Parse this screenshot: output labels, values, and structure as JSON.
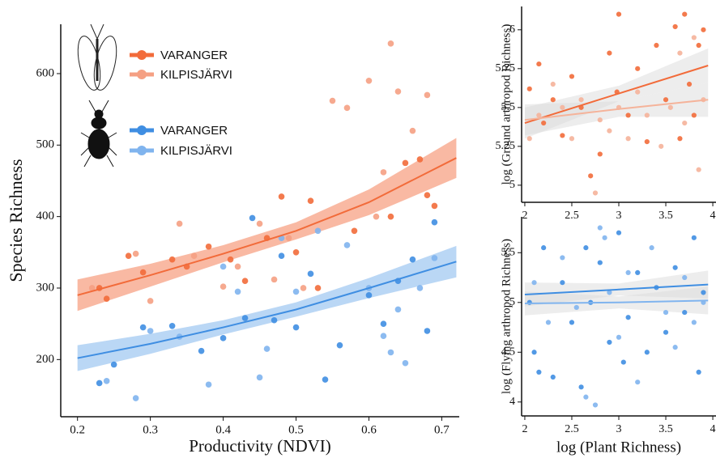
{
  "chart_data": [
    {
      "type": "scatter",
      "xlabel": "Productivity (NDVI)",
      "ylabel": "Species Richness",
      "xlim": [
        0.177,
        0.724
      ],
      "ylim": [
        120,
        669
      ],
      "xticks": [
        0.2,
        0.3,
        0.4,
        0.5,
        0.6,
        0.7
      ],
      "yticks": [
        200,
        300,
        400,
        500,
        600
      ],
      "legend": "top-left",
      "series": [
        {
          "name": "VARANGER",
          "color": "#f26b3a",
          "x": [
            0.23,
            0.24,
            0.27,
            0.29,
            0.33,
            0.35,
            0.38,
            0.41,
            0.43,
            0.46,
            0.48,
            0.5,
            0.52,
            0.53,
            0.58,
            0.63,
            0.65,
            0.67,
            0.68,
            0.69
          ],
          "values": [
            300,
            285,
            345,
            322,
            340,
            330,
            358,
            340,
            310,
            370,
            428,
            350,
            422,
            300,
            380,
            400,
            475,
            480,
            430,
            415
          ]
        },
        {
          "name": "KILPISJÄRVI",
          "color": "#f5a083",
          "x": [
            0.22,
            0.28,
            0.3,
            0.34,
            0.36,
            0.4,
            0.42,
            0.45,
            0.47,
            0.49,
            0.51,
            0.55,
            0.57,
            0.6,
            0.62,
            0.63,
            0.64,
            0.66,
            0.68,
            0.61
          ],
          "values": [
            300,
            348,
            282,
            390,
            345,
            302,
            330,
            390,
            312,
            370,
            300,
            562,
            552,
            590,
            462,
            642,
            575,
            520,
            570,
            400
          ]
        },
        {
          "name": "VARANGER",
          "color": "#3f8ee2",
          "x": [
            0.23,
            0.25,
            0.29,
            0.33,
            0.37,
            0.4,
            0.43,
            0.44,
            0.47,
            0.48,
            0.5,
            0.52,
            0.54,
            0.56,
            0.6,
            0.62,
            0.64,
            0.66,
            0.68,
            0.69
          ],
          "values": [
            167,
            193,
            245,
            247,
            212,
            230,
            258,
            398,
            255,
            345,
            245,
            320,
            172,
            220,
            290,
            250,
            310,
            340,
            240,
            392
          ]
        },
        {
          "name": "KILPISJÄRVI",
          "color": "#80b4ee",
          "x": [
            0.24,
            0.28,
            0.3,
            0.34,
            0.38,
            0.4,
            0.42,
            0.45,
            0.46,
            0.48,
            0.5,
            0.53,
            0.57,
            0.6,
            0.63,
            0.64,
            0.65,
            0.67,
            0.69,
            0.62
          ],
          "values": [
            170,
            146,
            240,
            232,
            165,
            330,
            295,
            175,
            215,
            370,
            295,
            380,
            360,
            300,
            210,
            270,
            195,
            300,
            342,
            233
          ]
        }
      ],
      "fits": [
        {
          "color": "#f26b3a",
          "band_color": "#f7a88c",
          "x": [
            0.2,
            0.3,
            0.4,
            0.5,
            0.6,
            0.72
          ],
          "values": [
            290,
            318,
            348,
            380,
            420,
            482
          ],
          "lower": [
            268,
            302,
            336,
            368,
            402,
            454
          ],
          "upper": [
            312,
            334,
            360,
            392,
            438,
            510
          ]
        },
        {
          "color": "#3f8ee2",
          "band_color": "#a9cdf3",
          "x": [
            0.2,
            0.3,
            0.4,
            0.5,
            0.6,
            0.72
          ],
          "values": [
            202,
            222,
            245,
            270,
            300,
            337
          ],
          "lower": [
            184,
            208,
            235,
            260,
            286,
            315
          ],
          "upper": [
            220,
            236,
            255,
            280,
            314,
            359
          ]
        }
      ]
    },
    {
      "type": "scatter",
      "ylabel": "log (Ground arthropod Richness)",
      "xlim": [
        1.966,
        4.034
      ],
      "ylim": [
        4.89,
        6.15
      ],
      "xticks": [
        2,
        2.5,
        3,
        3.5,
        4
      ],
      "yticks": [
        5,
        5.25,
        5.5,
        5.75,
        6
      ],
      "series": [
        {
          "color": "#f26b3a",
          "x": [
            2.05,
            2.15,
            2.2,
            2.3,
            2.4,
            2.5,
            2.6,
            2.7,
            2.8,
            2.9,
            2.98,
            3.0,
            3.1,
            3.2,
            3.3,
            3.4,
            3.5,
            3.6,
            3.65,
            3.7,
            3.75,
            3.85,
            3.9,
            3.8
          ],
          "values": [
            5.62,
            5.78,
            5.4,
            5.55,
            5.32,
            5.7,
            5.5,
            5.06,
            5.2,
            5.85,
            5.6,
            6.1,
            5.45,
            5.75,
            5.28,
            5.9,
            5.55,
            6.02,
            5.3,
            6.1,
            5.65,
            5.9,
            6.0,
            5.45
          ]
        },
        {
          "color": "#f5b39a",
          "x": [
            2.05,
            2.15,
            2.3,
            2.4,
            2.5,
            2.6,
            2.75,
            2.8,
            2.9,
            3.0,
            3.1,
            3.2,
            3.3,
            3.45,
            3.55,
            3.65,
            3.7,
            3.8,
            3.85,
            3.9
          ],
          "values": [
            5.3,
            5.45,
            5.65,
            5.5,
            5.3,
            5.55,
            4.95,
            5.42,
            5.35,
            5.5,
            5.3,
            5.6,
            5.45,
            5.25,
            5.5,
            5.85,
            5.4,
            5.95,
            5.1,
            5.55
          ]
        }
      ],
      "fits": [
        {
          "color": "#f26b3a",
          "band_color": "#dcdcdc",
          "x": [
            2,
            3,
            3.95
          ],
          "values": [
            5.4,
            5.59,
            5.77
          ],
          "lower": [
            5.3,
            5.54,
            5.66
          ],
          "upper": [
            5.5,
            5.64,
            5.88
          ]
        },
        {
          "color": "#f5b39a",
          "band_color": "#dcdcdc",
          "x": [
            2,
            3,
            3.95
          ],
          "values": [
            5.42,
            5.49,
            5.55
          ],
          "lower": [
            5.32,
            5.44,
            5.44
          ],
          "upper": [
            5.52,
            5.54,
            5.66
          ]
        }
      ]
    },
    {
      "type": "scatter",
      "xlabel": "log (Plant Richness)",
      "ylabel": "log (Flying arthropod Richness)",
      "xlim": [
        1.966,
        4.034
      ],
      "ylim": [
        3.86,
        5.86
      ],
      "xticks": [
        2,
        2.5,
        3,
        3.5,
        4
      ],
      "yticks": [
        4,
        4.5,
        5,
        5.5
      ],
      "series": [
        {
          "color": "#3f8ee2",
          "x": [
            2.05,
            2.1,
            2.15,
            2.2,
            2.3,
            2.4,
            2.5,
            2.6,
            2.7,
            2.8,
            2.9,
            3.0,
            3.1,
            3.2,
            3.3,
            3.4,
            3.5,
            3.6,
            3.7,
            3.8,
            3.85,
            3.9,
            2.65,
            3.05
          ],
          "values": [
            5.0,
            4.5,
            4.3,
            5.55,
            4.25,
            5.2,
            4.8,
            4.15,
            5.0,
            5.4,
            4.6,
            5.7,
            4.85,
            5.3,
            4.5,
            5.15,
            4.7,
            5.35,
            4.9,
            5.65,
            4.3,
            5.1,
            5.55,
            4.4
          ]
        },
        {
          "color": "#80b4ee",
          "x": [
            2.1,
            2.25,
            2.4,
            2.55,
            2.65,
            2.75,
            2.8,
            2.9,
            3.0,
            3.1,
            3.2,
            3.35,
            3.5,
            3.6,
            3.7,
            3.8,
            3.9,
            2.85
          ],
          "values": [
            5.2,
            4.8,
            5.45,
            4.95,
            4.05,
            3.97,
            5.75,
            5.1,
            4.65,
            5.3,
            4.2,
            5.55,
            4.9,
            4.55,
            5.25,
            4.8,
            5.0,
            5.65
          ]
        }
      ],
      "fits": [
        {
          "color": "#3f8ee2",
          "band_color": "#dcdcdc",
          "x": [
            2,
            3,
            3.95
          ],
          "values": [
            5.08,
            5.13,
            5.18
          ],
          "lower": [
            4.96,
            5.07,
            5.04
          ],
          "upper": [
            5.2,
            5.19,
            5.32
          ]
        },
        {
          "color": "#80b4ee",
          "band_color": "#dcdcdc",
          "x": [
            2,
            3,
            3.95
          ],
          "values": [
            4.99,
            5.0,
            5.02
          ],
          "lower": [
            4.87,
            4.94,
            4.88
          ],
          "upper": [
            5.11,
            5.06,
            5.16
          ]
        }
      ]
    }
  ]
}
